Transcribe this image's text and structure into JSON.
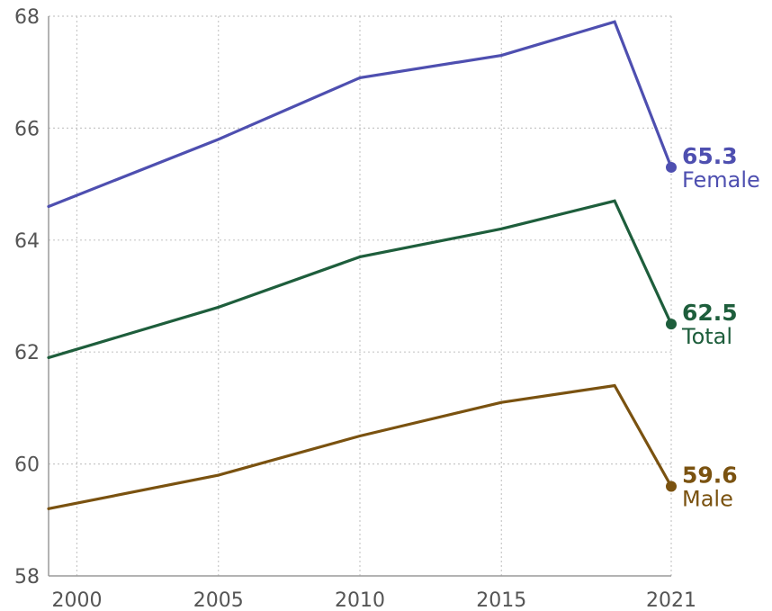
{
  "chart_data": {
    "type": "line",
    "title": "",
    "xlabel": "",
    "ylabel": "",
    "x": [
      1999,
      2005,
      2010,
      2015,
      2019,
      2021
    ],
    "xlim": [
      1999,
      2021
    ],
    "ylim": [
      58,
      68
    ],
    "x_ticks": [
      2000,
      2005,
      2010,
      2015,
      2021
    ],
    "x_tick_labels": [
      "2000",
      "2005",
      "2010",
      "2015",
      "2021"
    ],
    "y_ticks": [
      58,
      60,
      62,
      64,
      66,
      68
    ],
    "y_tick_labels": [
      "58",
      "60",
      "62",
      "64",
      "66",
      "68"
    ],
    "grid": true,
    "legend": "direct labels at line ends",
    "series": [
      {
        "name": "Female",
        "color": "#4e4fb0",
        "values": [
          64.6,
          65.8,
          66.9,
          67.3,
          67.9,
          65.3
        ],
        "end_label": "65.3"
      },
      {
        "name": "Total",
        "color": "#1e5e3c",
        "values": [
          61.9,
          62.8,
          63.7,
          64.2,
          64.7,
          62.5
        ],
        "end_label": "62.5"
      },
      {
        "name": "Male",
        "color": "#7a5210",
        "values": [
          59.2,
          59.8,
          60.5,
          61.1,
          61.4,
          59.6
        ],
        "end_label": "59.6"
      }
    ]
  }
}
